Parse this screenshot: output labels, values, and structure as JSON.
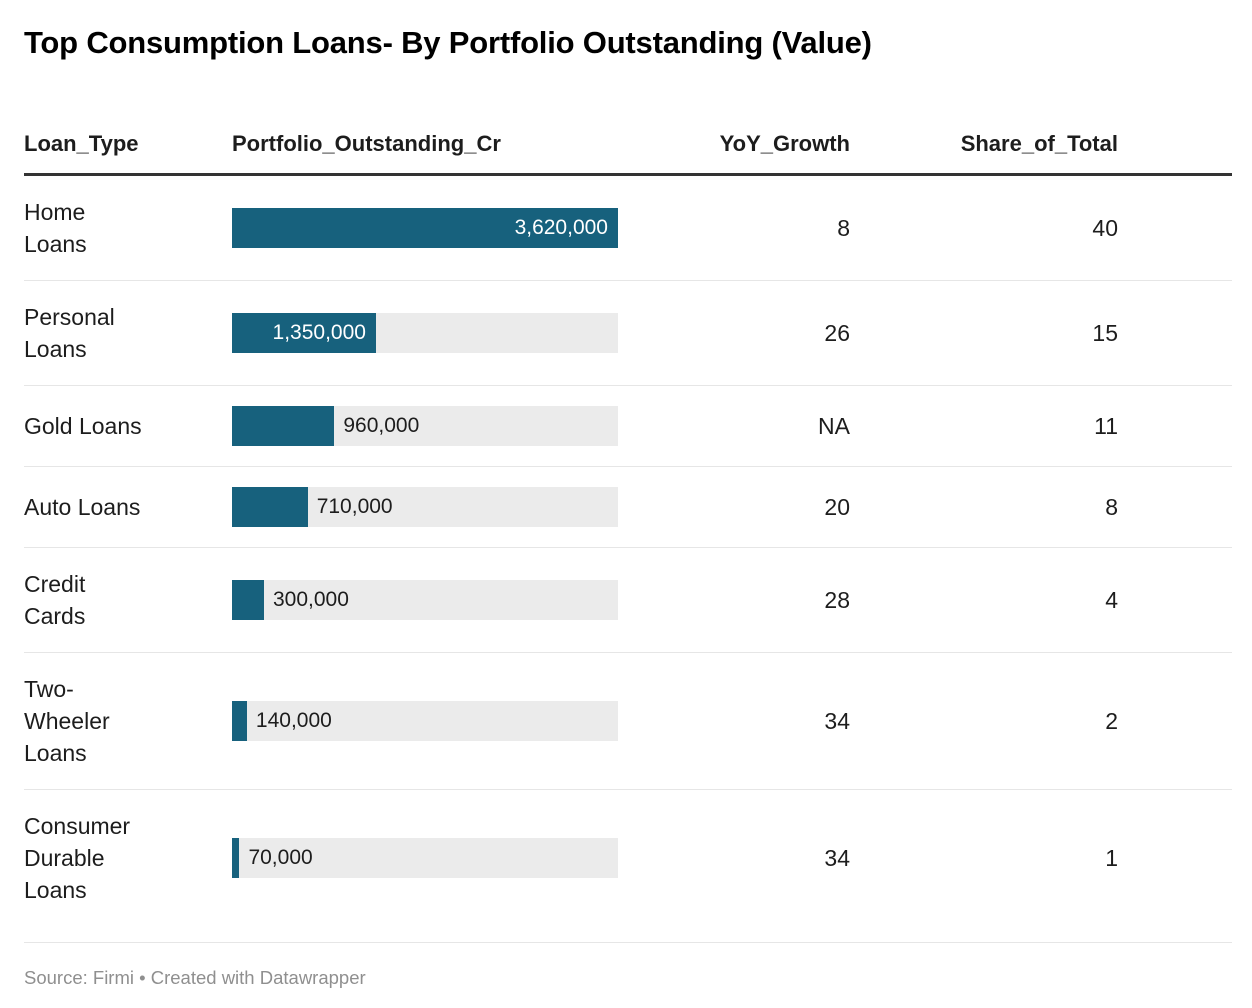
{
  "title": "Top Consumption Loans- By Portfolio Outstanding (Value)",
  "header": {
    "loan_type": "Loan_Type",
    "portfolio": "Portfolio_Outstanding_Cr",
    "yoy": "YoY_Growth",
    "share": "Share_of_Total"
  },
  "footer": "Source: Firmi • Created with Datawrapper",
  "colors": {
    "bar_fill": "#17617d",
    "bar_track": "#ebebeb",
    "header_rule": "#333333",
    "row_divider": "#e6e6e6",
    "footer_text": "#8f8f8f",
    "bar_label_inside": "#ffffff",
    "bar_label_outside": "#1d1d1d"
  },
  "chart_data": {
    "type": "bar",
    "title": "Top Consumption Loans- By Portfolio Outstanding (Value)",
    "categories": [
      "Home Loans",
      "Personal Loans",
      "Gold Loans",
      "Auto Loans",
      "Credit Cards",
      "Two-Wheeler Loans",
      "Consumer Durable Loans"
    ],
    "series": [
      {
        "name": "Portfolio_Outstanding_Cr",
        "values": [
          3620000,
          1350000,
          960000,
          710000,
          300000,
          140000,
          70000
        ]
      },
      {
        "name": "YoY_Growth",
        "values": [
          8,
          26,
          null,
          20,
          28,
          34,
          34
        ]
      },
      {
        "name": "Share_of_Total",
        "values": [
          40,
          15,
          11,
          8,
          4,
          2,
          1
        ]
      }
    ],
    "xlabel": "",
    "ylabel": "",
    "xlim": [
      0,
      3620000
    ],
    "grid": false,
    "legend": "none",
    "notes": "YoY_Growth shown as NA for Gold Loans; bars drawn horizontally in-table, scaled to max value 3,620,000"
  },
  "rows": [
    {
      "loan_type": "Home\nLoans",
      "value": 3620000,
      "value_label": "3,620,000",
      "yoy": "8",
      "share": "40"
    },
    {
      "loan_type": "Personal\nLoans",
      "value": 1350000,
      "value_label": "1,350,000",
      "yoy": "26",
      "share": "15"
    },
    {
      "loan_type": "Gold Loans",
      "value": 960000,
      "value_label": "960,000",
      "yoy": "NA",
      "share": "11"
    },
    {
      "loan_type": "Auto Loans",
      "value": 710000,
      "value_label": "710,000",
      "yoy": "20",
      "share": "8"
    },
    {
      "loan_type": "Credit\nCards",
      "value": 300000,
      "value_label": "300,000",
      "yoy": "28",
      "share": "4"
    },
    {
      "loan_type": "Two-\nWheeler\nLoans",
      "value": 140000,
      "value_label": "140,000",
      "yoy": "34",
      "share": "2"
    },
    {
      "loan_type": "Consumer\nDurable\nLoans",
      "value": 70000,
      "value_label": "70,000",
      "yoy": "34",
      "share": "1"
    }
  ]
}
